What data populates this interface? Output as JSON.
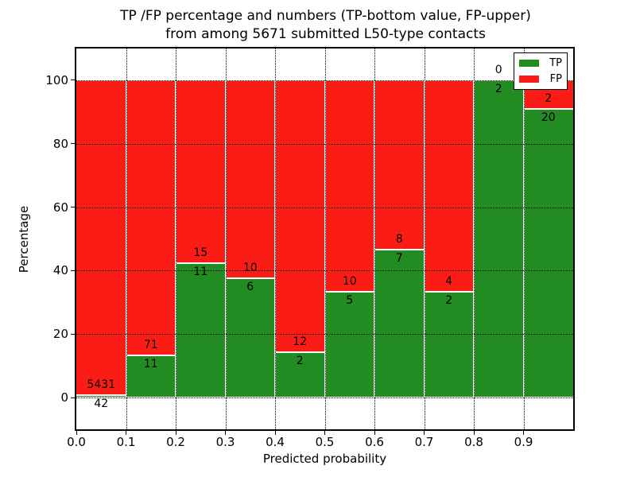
{
  "title": {
    "line1": "TP /FP percentage and numbers (TP-bottom value, FP-upper)",
    "line2": "from among 5671 submitted L50-type contacts"
  },
  "axes": {
    "xlabel": "Predicted probability",
    "ylabel": "Percentage",
    "xticks": [
      "0.0",
      "0.1",
      "0.2",
      "0.3",
      "0.4",
      "0.5",
      "0.6",
      "0.7",
      "0.8",
      "0.9"
    ],
    "yticks": [
      "0",
      "20",
      "40",
      "60",
      "80",
      "100"
    ]
  },
  "legend": {
    "position": "upper-right",
    "entries": [
      {
        "label": "TP",
        "color": "#228b22"
      },
      {
        "label": "FP",
        "color": "#fb1d15"
      }
    ]
  },
  "colors": {
    "tp_green": "#228b22",
    "fp_red": "#fb1d15",
    "bar_edge": "#ffffff",
    "grid": "#000000"
  },
  "chart_data": {
    "type": "bar",
    "stacked": true,
    "orientation": "vertical",
    "grid": "dotted-both-axes",
    "total_submitted_contacts": 5671,
    "bin_edges": [
      0.0,
      0.1,
      0.2,
      0.3,
      0.4,
      0.5,
      0.6,
      0.7,
      0.8,
      0.9,
      1.0
    ],
    "series": [
      {
        "name": "TP",
        "color": "#228b22",
        "counts": [
          42,
          11,
          11,
          6,
          2,
          5,
          7,
          2,
          2,
          20
        ]
      },
      {
        "name": "FP",
        "color": "#fb1d15",
        "counts": [
          5431,
          71,
          15,
          10,
          12,
          10,
          8,
          4,
          0,
          2
        ]
      }
    ],
    "tp_percent": [
      0.77,
      13.41,
      42.31,
      37.5,
      14.29,
      33.33,
      46.67,
      33.33,
      100.0,
      90.91
    ],
    "bar_total_percent": 100,
    "xlim": [
      0.0,
      1.0
    ],
    "ylim": [
      -10,
      110
    ],
    "ytick_values": [
      0,
      20,
      40,
      60,
      80,
      100
    ],
    "xtick_values": [
      0.0,
      0.1,
      0.2,
      0.3,
      0.4,
      0.5,
      0.6,
      0.7,
      0.8,
      0.9
    ]
  }
}
